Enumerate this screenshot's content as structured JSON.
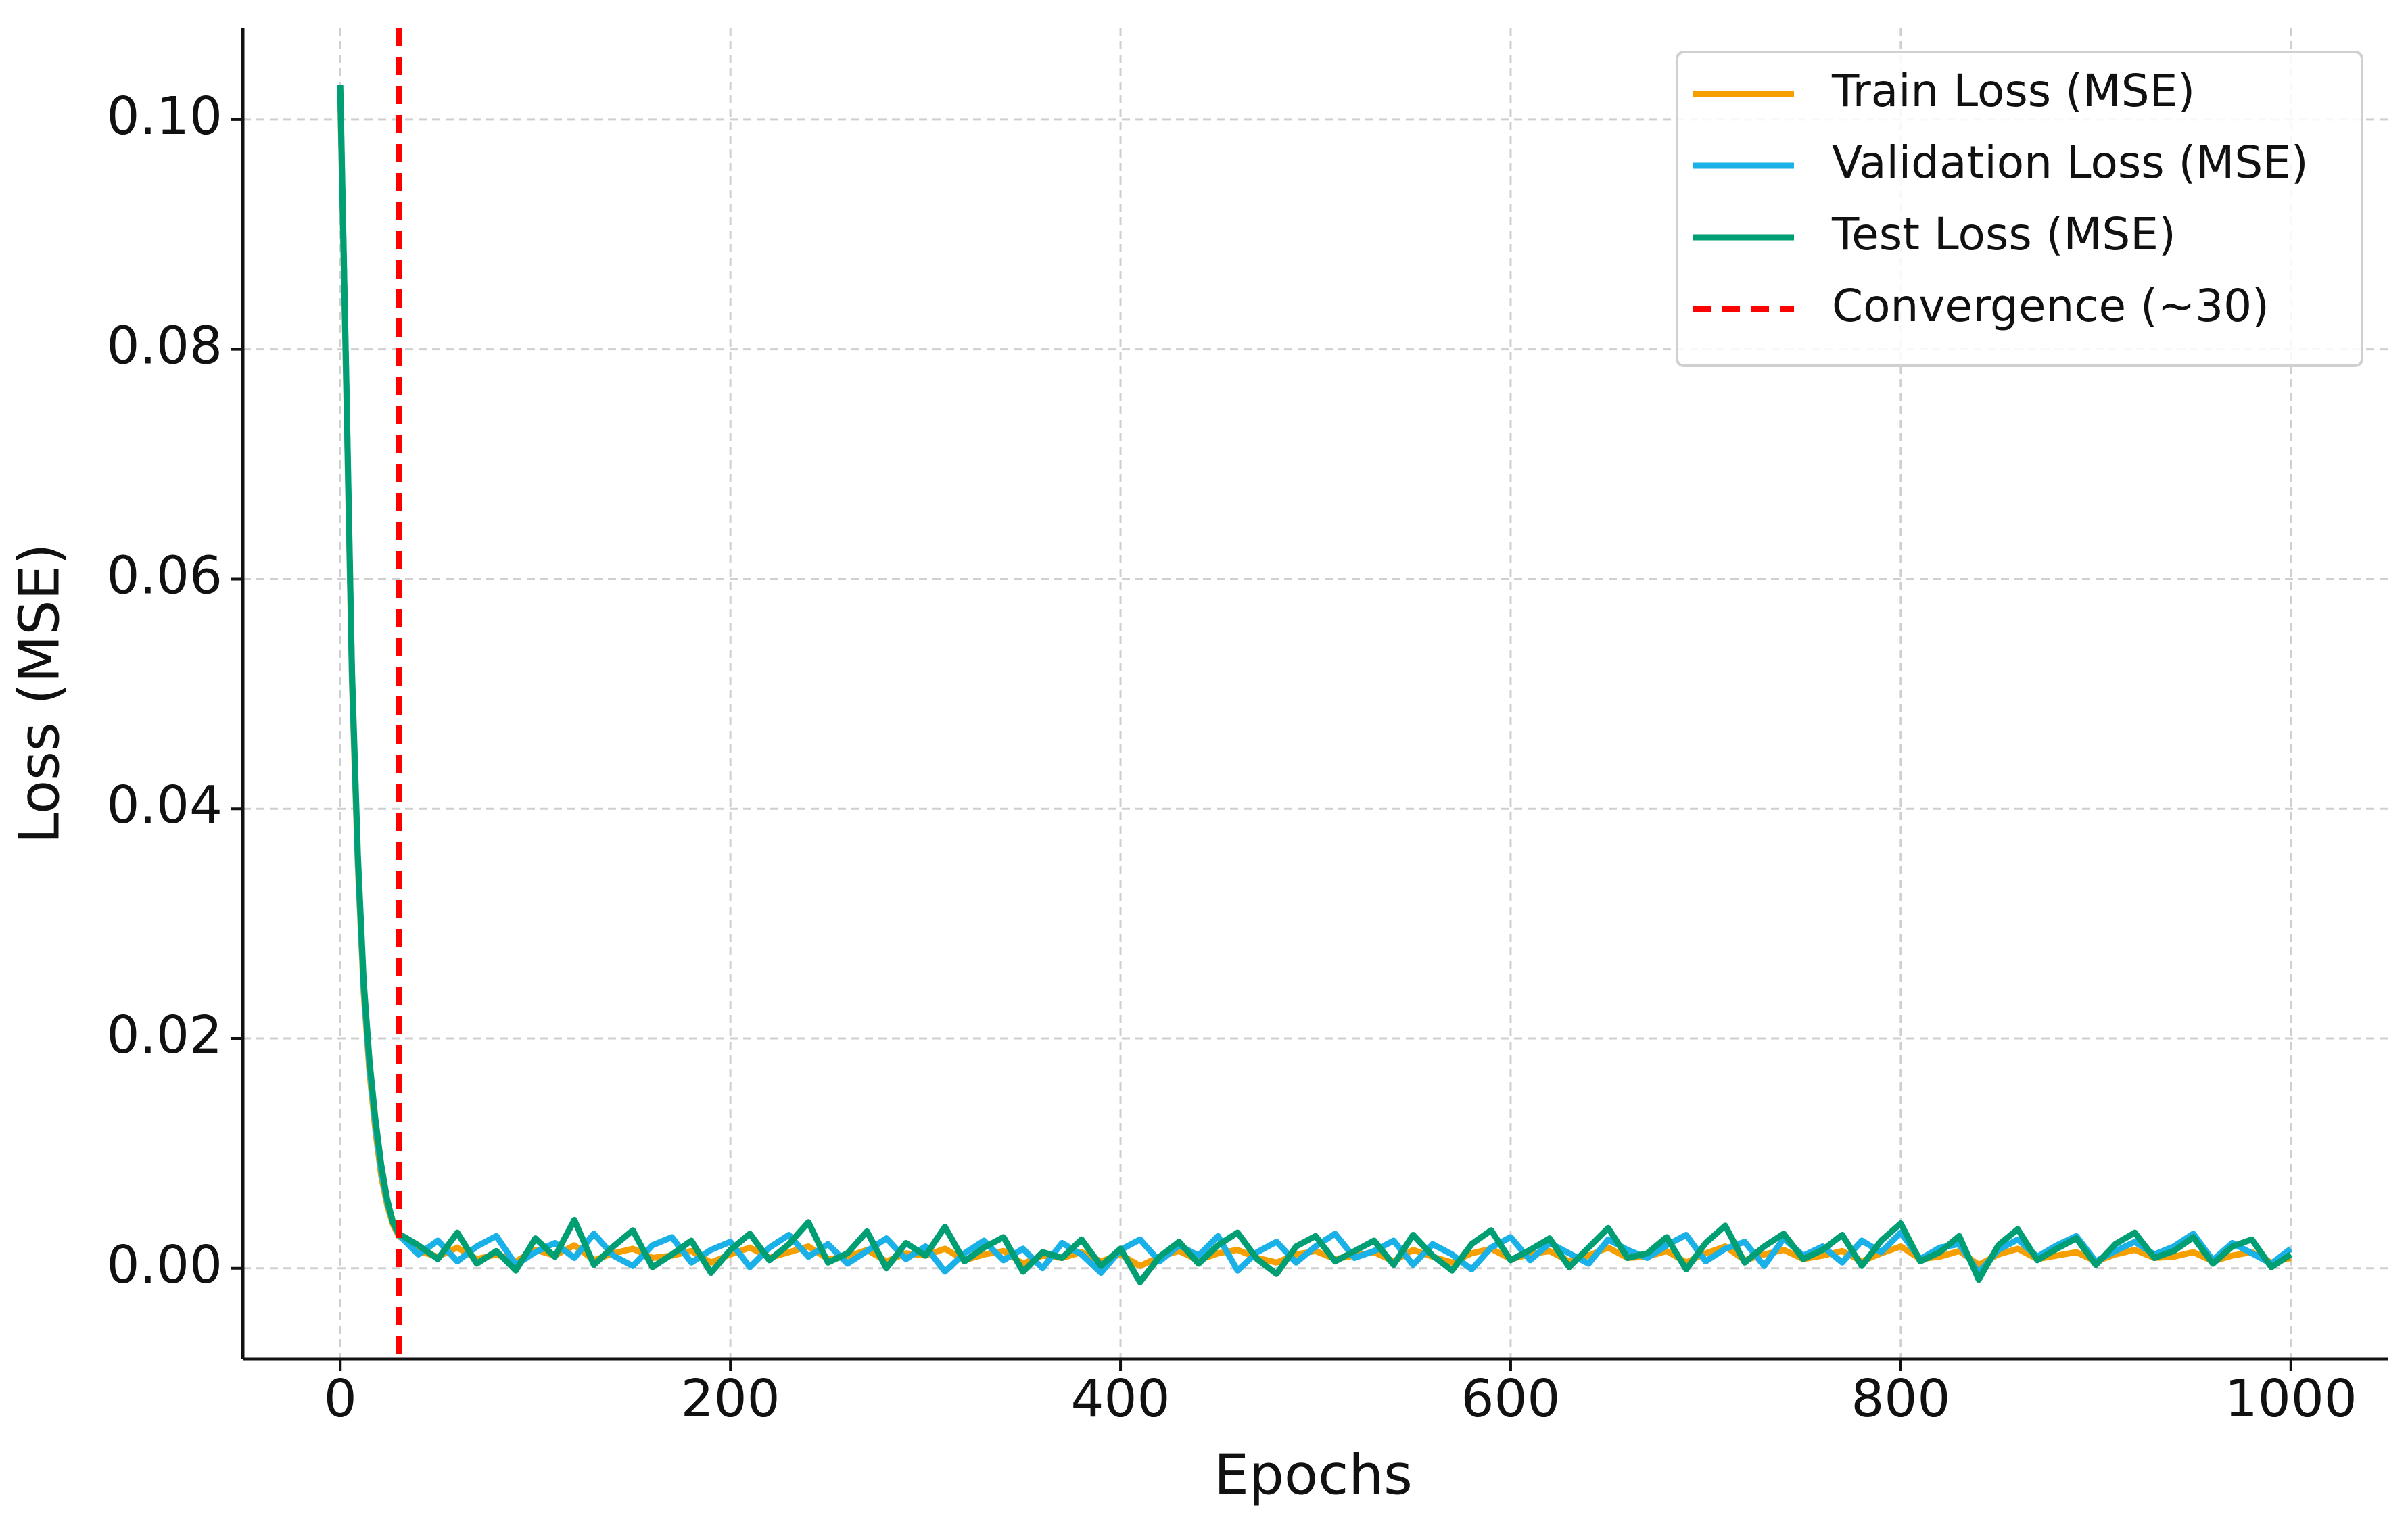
{
  "chart_data": {
    "type": "line",
    "xlabel": "Epochs",
    "ylabel": "Loss (MSE)",
    "xlim": [
      -50,
      1050
    ],
    "ylim": [
      -0.0079,
      0.108
    ],
    "xticks": [
      0,
      200,
      400,
      600,
      800,
      1000
    ],
    "yticks": [
      {
        "value": 0,
        "label": "0.00"
      },
      {
        "value": 0.02,
        "label": "0.02"
      },
      {
        "value": 0.04,
        "label": "0.04"
      },
      {
        "value": 0.06,
        "label": "0.06"
      },
      {
        "value": 0.08,
        "label": "0.08"
      },
      {
        "value": 0.1,
        "label": "0.10"
      }
    ],
    "grid": true,
    "legend": "upper right",
    "x": [
      0,
      3,
      6,
      9,
      12,
      15,
      18,
      21,
      24,
      27,
      30,
      40,
      50,
      60,
      70,
      80,
      90,
      100,
      110,
      120,
      130,
      140,
      150,
      160,
      170,
      180,
      190,
      200,
      210,
      220,
      230,
      240,
      250,
      260,
      270,
      280,
      290,
      300,
      310,
      320,
      330,
      340,
      350,
      360,
      370,
      380,
      390,
      400,
      410,
      420,
      430,
      440,
      450,
      460,
      470,
      480,
      490,
      500,
      510,
      520,
      530,
      540,
      550,
      560,
      570,
      580,
      590,
      600,
      610,
      620,
      630,
      640,
      650,
      660,
      670,
      680,
      690,
      700,
      710,
      720,
      730,
      740,
      750,
      760,
      770,
      780,
      790,
      800,
      810,
      820,
      830,
      840,
      850,
      860,
      870,
      880,
      890,
      900,
      910,
      920,
      930,
      940,
      950,
      960,
      970,
      980,
      990,
      1000
    ],
    "series": [
      {
        "name": "Train Loss (MSE)",
        "color": "#f5a000",
        "values": [
          0.102,
          0.077,
          0.051,
          0.035,
          0.024,
          0.017,
          0.012,
          0.008,
          0.0055,
          0.0038,
          0.0028,
          0.0015,
          0.001,
          0.0018,
          0.0008,
          0.0012,
          0.0006,
          0.0016,
          0.0011,
          0.002,
          0.0007,
          0.0013,
          0.0017,
          0.0009,
          0.0011,
          0.0015,
          0.0005,
          0.0012,
          0.0018,
          0.0009,
          0.0014,
          0.0019,
          0.0008,
          0.001,
          0.0016,
          0.0006,
          0.0013,
          0.0011,
          0.0017,
          0.0007,
          0.0012,
          0.0015,
          0.0004,
          0.0011,
          0.0009,
          0.0014,
          0.0006,
          0.0012,
          0.0002,
          0.001,
          0.0015,
          0.0007,
          0.0013,
          0.0016,
          0.0009,
          0.0005,
          0.0012,
          0.0015,
          0.0008,
          0.0011,
          0.0014,
          0.0006,
          0.0016,
          0.001,
          0.0005,
          0.0013,
          0.0017,
          0.0008,
          0.0012,
          0.0015,
          0.0006,
          0.0011,
          0.0018,
          0.0009,
          0.001,
          0.0015,
          0.0005,
          0.0013,
          0.0019,
          0.0007,
          0.0012,
          0.0016,
          0.0008,
          0.0011,
          0.0015,
          0.0006,
          0.0013,
          0.0019,
          0.0008,
          0.001,
          0.0015,
          0.0003,
          0.0012,
          0.0017,
          0.0008,
          0.0011,
          0.0014,
          0.0006,
          0.0012,
          0.0016,
          0.0009,
          0.001,
          0.0014,
          0.0006,
          0.0011,
          0.0014,
          0.0005,
          0.0009
        ]
      },
      {
        "name": "Validation Loss (MSE)",
        "color": "#1ab0e8",
        "values": [
          0.1025,
          0.0775,
          0.0515,
          0.0355,
          0.0245,
          0.0175,
          0.0125,
          0.0085,
          0.0058,
          0.004,
          0.0029,
          0.0012,
          0.0024,
          0.0006,
          0.0019,
          0.0028,
          0.0003,
          0.0014,
          0.0022,
          0.0009,
          0.003,
          0.0011,
          0.0002,
          0.002,
          0.0027,
          0.0005,
          0.0016,
          0.0023,
          0.0001,
          0.0018,
          0.0029,
          0.001,
          0.0021,
          0.0004,
          0.0015,
          0.0026,
          0.0008,
          0.0019,
          -0.0003,
          0.0013,
          0.0024,
          0.0007,
          0.0017,
          0.0,
          0.0022,
          0.0012,
          -0.0004,
          0.0016,
          0.0025,
          0.0006,
          0.002,
          0.0011,
          0.0028,
          -0.0002,
          0.0014,
          0.0023,
          0.0005,
          0.0019,
          0.003,
          0.0009,
          0.0015,
          0.0024,
          0.0003,
          0.0021,
          0.0012,
          -0.0001,
          0.0018,
          0.0027,
          0.0007,
          0.0022,
          0.0013,
          0.0004,
          0.0025,
          0.0016,
          0.0009,
          0.002,
          0.0029,
          0.0006,
          0.0017,
          0.0023,
          0.0002,
          0.0026,
          0.0011,
          0.0019,
          0.0005,
          0.0024,
          0.0014,
          0.0031,
          0.0008,
          0.0018,
          0.0021,
          -0.0004,
          0.0016,
          0.0025,
          0.001,
          0.002,
          0.0028,
          0.0006,
          0.0015,
          0.0023,
          0.0012,
          0.0019,
          0.003,
          0.0007,
          0.0022,
          0.0013,
          0.0004,
          0.0017
        ]
      },
      {
        "name": "Test Loss (MSE)",
        "color": "#009e73",
        "values": [
          0.103,
          0.078,
          0.052,
          0.036,
          0.025,
          0.018,
          0.013,
          0.009,
          0.006,
          0.004,
          0.003,
          0.002,
          0.0008,
          0.0031,
          0.0004,
          0.0015,
          -0.0002,
          0.0026,
          0.001,
          0.0042,
          0.0003,
          0.0019,
          0.0033,
          0.0001,
          0.0012,
          0.0024,
          -0.0004,
          0.0016,
          0.003,
          0.0007,
          0.0021,
          0.004,
          0.0005,
          0.0013,
          0.0032,
          0.0,
          0.0022,
          0.0011,
          0.0036,
          0.0006,
          0.0018,
          0.0027,
          -0.0003,
          0.0014,
          0.0009,
          0.0025,
          0.0002,
          0.0017,
          -0.0012,
          0.001,
          0.0023,
          0.0004,
          0.002,
          0.0031,
          0.0008,
          -0.0005,
          0.0019,
          0.0028,
          0.0006,
          0.0015,
          0.0024,
          0.0003,
          0.0029,
          0.0011,
          -0.0002,
          0.0021,
          0.0033,
          0.0007,
          0.0016,
          0.0026,
          0.0001,
          0.0018,
          0.0035,
          0.0009,
          0.0013,
          0.0027,
          -0.0001,
          0.0022,
          0.0037,
          0.0005,
          0.0019,
          0.003,
          0.0008,
          0.0016,
          0.0029,
          0.0002,
          0.0024,
          0.0039,
          0.0006,
          0.0014,
          0.0028,
          -0.001,
          0.002,
          0.0034,
          0.0007,
          0.0017,
          0.0026,
          0.0003,
          0.0021,
          0.0031,
          0.0009,
          0.0015,
          0.0027,
          0.0004,
          0.0019,
          0.0025,
          0.0001,
          0.0012
        ]
      }
    ],
    "vlines": [
      {
        "name": "Convergence (~30)",
        "x": 30,
        "color": "#ff0000"
      }
    ]
  }
}
